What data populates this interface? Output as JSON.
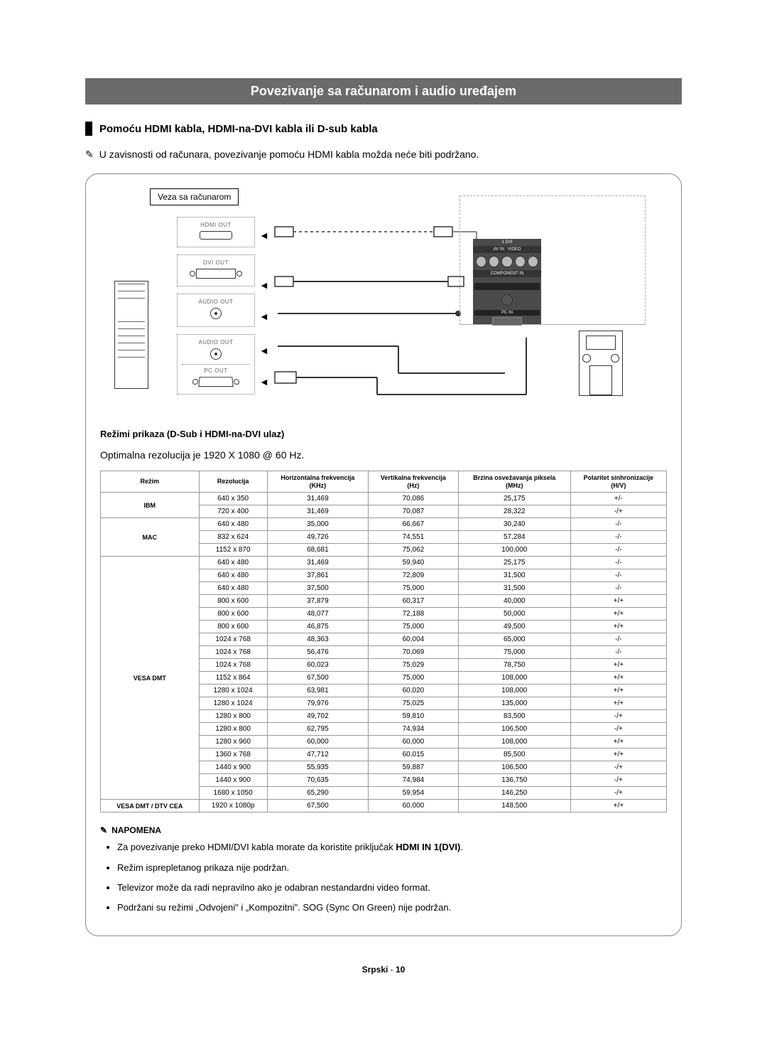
{
  "title": "Povezivanje sa računarom i audio uređajem",
  "subheading": "Pomoću HDMI kabla, HDMI-na-DVI kabla ili D-sub kabla",
  "hand_glyph": "✎",
  "intro_note": "U zavisnosti od računara, povezivanje pomoću HDMI kabla možda neće biti podržano.",
  "diagram": {
    "pc_label": "Veza sa računarom",
    "ports": {
      "hdmi": "HDMI OUT",
      "dvi": "DVI OUT",
      "audio1": "AUDIO OUT",
      "audio2": "AUDIO OUT",
      "pc": "PC OUT"
    }
  },
  "modes_heading": "Režimi prikaza (D-Sub i HDMI-na-DVI ulaz)",
  "optimal_line": "Optimalna rezolucija je 1920 X 1080 @ 60 Hz.",
  "table": {
    "headers": {
      "mode": "Režim",
      "res": "Rezolucija",
      "hfreq": "Horizontalna frekvencija\n(KHz)",
      "vfreq": "Vertikalna frekvencija\n(Hz)",
      "pixel": "Brzina osvežavanja piksela\n(MHz)",
      "sync": "Polaritet sinhronizacije\n(H/V)"
    },
    "groups": [
      {
        "mode": "IBM",
        "rows": [
          [
            "640 x 350",
            "31,469",
            "70,086",
            "25,175",
            "+/-"
          ],
          [
            "720 x 400",
            "31,469",
            "70,087",
            "28,322",
            "-/+"
          ]
        ]
      },
      {
        "mode": "MAC",
        "rows": [
          [
            "640 x 480",
            "35,000",
            "66,667",
            "30,240",
            "-/-"
          ],
          [
            "832 x 624",
            "49,726",
            "74,551",
            "57,284",
            "-/-"
          ],
          [
            "1152 x 870",
            "68,681",
            "75,062",
            "100,000",
            "-/-"
          ]
        ]
      },
      {
        "mode": "VESA DMT",
        "rows": [
          [
            "640 x 480",
            "31,469",
            "59,940",
            "25,175",
            "-/-"
          ],
          [
            "640 x 480",
            "37,861",
            "72,809",
            "31,500",
            "-/-"
          ],
          [
            "640 x 480",
            "37,500",
            "75,000",
            "31,500",
            "-/-"
          ],
          [
            "800 x 600",
            "37,879",
            "60,317",
            "40,000",
            "+/+"
          ],
          [
            "800 x 600",
            "48,077",
            "72,188",
            "50,000",
            "+/+"
          ],
          [
            "800 x 600",
            "46,875",
            "75,000",
            "49,500",
            "+/+"
          ],
          [
            "1024 x 768",
            "48,363",
            "60,004",
            "65,000",
            "-/-"
          ],
          [
            "1024 x 768",
            "56,476",
            "70,069",
            "75,000",
            "-/-"
          ],
          [
            "1024 x 768",
            "60,023",
            "75,029",
            "78,750",
            "+/+"
          ],
          [
            "1152 x 864",
            "67,500",
            "75,000",
            "108,000",
            "+/+"
          ],
          [
            "1280 x 1024",
            "63,981",
            "60,020",
            "108,000",
            "+/+"
          ],
          [
            "1280 x 1024",
            "79,976",
            "75,025",
            "135,000",
            "+/+"
          ],
          [
            "1280 x 800",
            "49,702",
            "59,810",
            "83,500",
            "-/+"
          ],
          [
            "1280 x 800",
            "62,795",
            "74,934",
            "106,500",
            "-/+"
          ],
          [
            "1280 x 960",
            "60,000",
            "60,000",
            "108,000",
            "+/+"
          ],
          [
            "1360 x 768",
            "47,712",
            "60,015",
            "85,500",
            "+/+"
          ],
          [
            "1440 x 900",
            "55,935",
            "59,887",
            "106,500",
            "-/+"
          ],
          [
            "1440 x 900",
            "70,635",
            "74,984",
            "136,750",
            "-/+"
          ],
          [
            "1680 x 1050",
            "65,290",
            "59,954",
            "146,250",
            "-/+"
          ]
        ]
      },
      {
        "mode": "VESA DMT / DTV CEA",
        "rows": [
          [
            "1920 x 1080p",
            "67,500",
            "60,000",
            "148,500",
            "+/+"
          ]
        ]
      }
    ]
  },
  "notes": {
    "heading": "NAPOMENA",
    "items": [
      {
        "pre": "Za povezivanje preko HDMI/DVI kabla morate da koristite priključak ",
        "bold": "HDMI IN 1(DVI)",
        "post": "."
      },
      {
        "pre": "Režim isprepletanog prikaza nije podržan.",
        "bold": "",
        "post": ""
      },
      {
        "pre": "Televizor može da radi nepravilno ako je odabran nestandardni video format.",
        "bold": "",
        "post": ""
      },
      {
        "pre": "Podržani su režimi „Odvojeni\" i „Kompozitni\". SOG (Sync On Green) nije podržan.",
        "bold": "",
        "post": ""
      }
    ]
  },
  "footer": {
    "lang": "Srpski",
    "sep": " - ",
    "page": "10"
  }
}
